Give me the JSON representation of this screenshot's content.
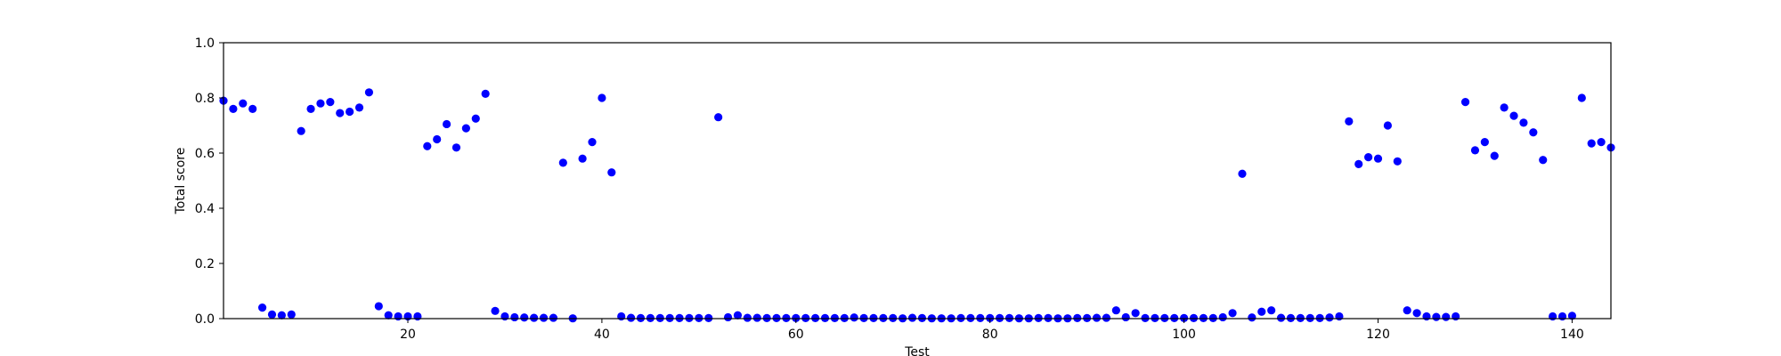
{
  "chart_data": {
    "type": "scatter",
    "title": "",
    "xlabel": "Test",
    "ylabel": "Total score",
    "xlim": [
      1,
      144
    ],
    "ylim": [
      0,
      1
    ],
    "x_ticks": [
      20,
      40,
      60,
      80,
      100,
      120,
      140
    ],
    "x_tick_labels": [
      "20",
      "40",
      "60",
      "80",
      "100",
      "120",
      "140"
    ],
    "y_ticks": [
      0,
      0.2,
      0.4,
      0.6,
      0.8,
      1.0
    ],
    "y_tick_labels": [
      "0.0",
      "0.2",
      "0.4",
      "0.6",
      "0.8",
      "1.0"
    ],
    "grid": false,
    "marker_color": "#0000ff",
    "x": [
      1,
      2,
      3,
      4,
      5,
      6,
      7,
      8,
      9,
      10,
      11,
      12,
      13,
      14,
      15,
      16,
      17,
      18,
      19,
      20,
      21,
      22,
      23,
      24,
      25,
      26,
      27,
      28,
      29,
      30,
      31,
      32,
      33,
      34,
      35,
      36,
      37,
      38,
      39,
      40,
      41,
      42,
      43,
      44,
      45,
      46,
      47,
      48,
      49,
      50,
      51,
      52,
      53,
      54,
      55,
      56,
      57,
      58,
      59,
      60,
      61,
      62,
      63,
      64,
      65,
      66,
      67,
      68,
      69,
      70,
      71,
      72,
      73,
      74,
      75,
      76,
      77,
      78,
      79,
      80,
      81,
      82,
      83,
      84,
      85,
      86,
      87,
      88,
      89,
      90,
      91,
      92,
      93,
      94,
      95,
      96,
      97,
      98,
      99,
      100,
      101,
      102,
      103,
      104,
      105,
      106,
      107,
      108,
      109,
      110,
      111,
      112,
      113,
      114,
      115,
      116,
      117,
      118,
      119,
      120,
      121,
      122,
      123,
      124,
      125,
      126,
      127,
      128,
      129,
      130,
      131,
      132,
      133,
      134,
      135,
      136,
      137,
      138,
      139,
      140,
      141,
      142,
      143,
      144
    ],
    "y": [
      0.79,
      0.76,
      0.78,
      0.76,
      0.04,
      0.015,
      0.012,
      0.015,
      0.68,
      0.76,
      0.78,
      0.785,
      0.745,
      0.75,
      0.765,
      0.82,
      0.045,
      0.012,
      0.008,
      0.008,
      0.008,
      0.625,
      0.65,
      0.705,
      0.62,
      0.69,
      0.725,
      0.815,
      0.028,
      0.008,
      0.005,
      0.004,
      0.003,
      0.003,
      0.003,
      0.565,
      0.001,
      0.58,
      0.64,
      0.8,
      0.53,
      0.008,
      0.003,
      0.002,
      0.002,
      0.002,
      0.002,
      0.002,
      0.002,
      0.002,
      0.002,
      0.73,
      0.005,
      0.012,
      0.003,
      0.003,
      0.002,
      0.002,
      0.002,
      0.002,
      0.002,
      0.002,
      0.002,
      0.002,
      0.002,
      0.004,
      0.002,
      0.002,
      0.002,
      0.002,
      0.001,
      0.003,
      0.002,
      0.001,
      0.001,
      0.001,
      0.002,
      0.002,
      0.002,
      0.002,
      0.002,
      0.002,
      0.001,
      0.001,
      0.002,
      0.002,
      0.001,
      0.001,
      0.002,
      0.002,
      0.003,
      0.003,
      0.03,
      0.005,
      0.02,
      0.002,
      0.002,
      0.002,
      0.002,
      0.002,
      0.002,
      0.002,
      0.002,
      0.005,
      0.02,
      0.525,
      0.004,
      0.025,
      0.03,
      0.003,
      0.002,
      0.002,
      0.002,
      0.002,
      0.004,
      0.008,
      0.715,
      0.56,
      0.585,
      0.58,
      0.7,
      0.57,
      0.03,
      0.02,
      0.008,
      0.006,
      0.006,
      0.008,
      0.785,
      0.61,
      0.64,
      0.59,
      0.765,
      0.735,
      0.71,
      0.675,
      0.575,
      0.008,
      0.008,
      0.01,
      0.8,
      0.635,
      0.64,
      0.62
    ]
  }
}
